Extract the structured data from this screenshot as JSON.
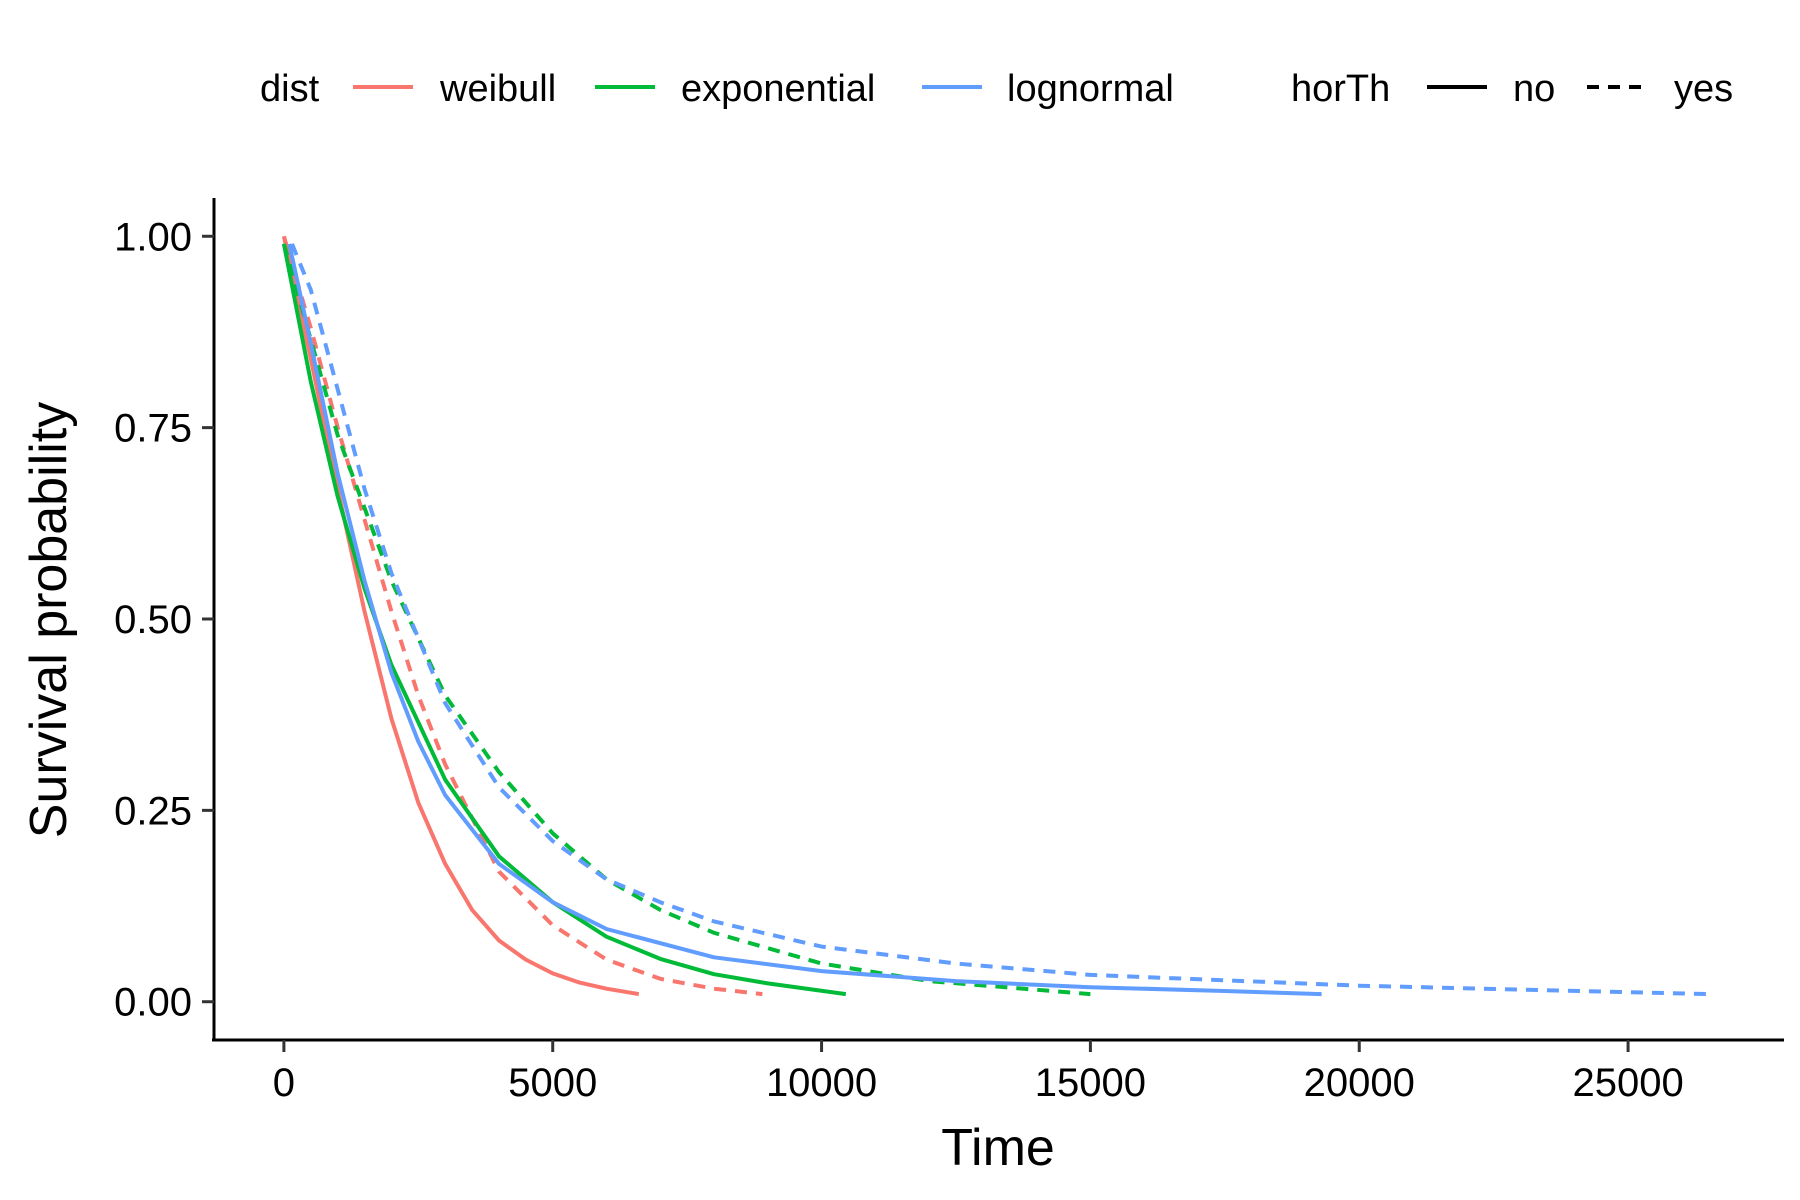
{
  "chart_data": {
    "type": "line",
    "xlabel": "Time",
    "ylabel": "Survival probability",
    "xlim": [
      -1300,
      27900
    ],
    "ylim": [
      -0.05,
      1.05
    ],
    "x_ticks": [
      "0",
      "5000",
      "10000",
      "15000",
      "20000",
      "25000"
    ],
    "y_ticks": [
      "0.00",
      "0.25",
      "0.50",
      "0.75",
      "1.00"
    ],
    "grid": false,
    "legend_position": "top",
    "legend": {
      "color_title": "dist",
      "color_entries": [
        {
          "label": "weibull",
          "color": "#F8766D"
        },
        {
          "label": "exponential",
          "color": "#00BA38"
        },
        {
          "label": "lognormal",
          "color": "#619CFF"
        }
      ],
      "linetype_title": "horTh",
      "linetype_entries": [
        {
          "label": "no",
          "dash": "solid"
        },
        {
          "label": "yes",
          "dash": "dashed"
        }
      ]
    },
    "series": [
      {
        "dist": "weibull",
        "horTh": "no",
        "color": "#F8766D",
        "dash": "solid",
        "x": [
          0,
          500,
          1000,
          1500,
          2000,
          2500,
          3000,
          3500,
          4000,
          4500,
          5000,
          5500,
          6000,
          6600
        ],
        "y": [
          1.0,
          0.84,
          0.67,
          0.51,
          0.37,
          0.26,
          0.18,
          0.12,
          0.08,
          0.055,
          0.037,
          0.025,
          0.017,
          0.01
        ]
      },
      {
        "dist": "weibull",
        "horTh": "yes",
        "color": "#F8766D",
        "dash": "dashed",
        "x": [
          0,
          500,
          1000,
          1500,
          2000,
          2500,
          3000,
          3500,
          4000,
          5000,
          6000,
          7000,
          8000,
          8900
        ],
        "y": [
          1.0,
          0.88,
          0.75,
          0.63,
          0.51,
          0.4,
          0.31,
          0.24,
          0.17,
          0.1,
          0.055,
          0.03,
          0.017,
          0.01
        ]
      },
      {
        "dist": "exponential",
        "horTh": "no",
        "color": "#00BA38",
        "dash": "solid",
        "x": [
          0,
          500,
          1000,
          1500,
          2000,
          3000,
          4000,
          5000,
          6000,
          7000,
          8000,
          9000,
          10450
        ],
        "y": [
          0.99,
          0.81,
          0.66,
          0.54,
          0.44,
          0.29,
          0.19,
          0.13,
          0.085,
          0.056,
          0.036,
          0.024,
          0.01
        ]
      },
      {
        "dist": "exponential",
        "horTh": "yes",
        "color": "#00BA38",
        "dash": "dashed",
        "x": [
          0,
          1000,
          2000,
          3000,
          4000,
          5000,
          6000,
          7000,
          8000,
          10000,
          12000,
          15000
        ],
        "y": [
          0.99,
          0.74,
          0.55,
          0.4,
          0.3,
          0.22,
          0.16,
          0.12,
          0.09,
          0.05,
          0.027,
          0.01
        ]
      },
      {
        "dist": "lognormal",
        "horTh": "no",
        "color": "#619CFF",
        "dash": "solid",
        "x": [
          100,
          500,
          1000,
          1500,
          2000,
          2500,
          3000,
          4000,
          5000,
          6000,
          8000,
          10000,
          12500,
          15000,
          17500,
          19300
        ],
        "y": [
          0.99,
          0.86,
          0.69,
          0.55,
          0.43,
          0.34,
          0.27,
          0.18,
          0.13,
          0.095,
          0.058,
          0.04,
          0.027,
          0.019,
          0.014,
          0.01
        ]
      },
      {
        "dist": "lognormal",
        "horTh": "yes",
        "color": "#619CFF",
        "dash": "dashed",
        "x": [
          150,
          500,
          1000,
          1500,
          2000,
          3000,
          4000,
          5000,
          6000,
          7000,
          8000,
          10000,
          12500,
          15000,
          20000,
          26500
        ],
        "y": [
          0.99,
          0.93,
          0.8,
          0.67,
          0.56,
          0.39,
          0.28,
          0.21,
          0.16,
          0.13,
          0.105,
          0.072,
          0.05,
          0.035,
          0.021,
          0.01
        ]
      }
    ]
  }
}
